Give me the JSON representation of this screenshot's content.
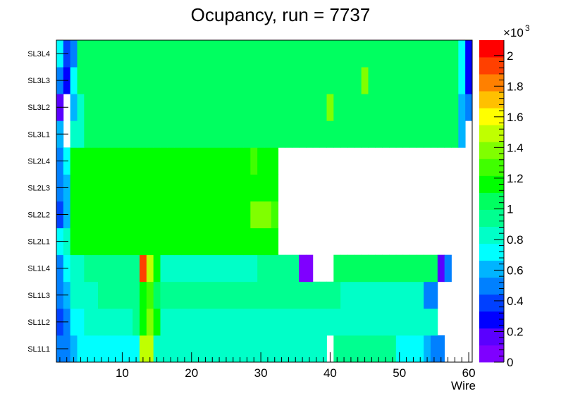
{
  "chart_data": {
    "type": "heatmap",
    "title": "Ocupancy, run = 7737",
    "xlabel": "Wire",
    "xlim": [
      0.5,
      60.5
    ],
    "x_ticks": [
      10,
      20,
      30,
      40,
      50,
      60
    ],
    "y_categories": [
      "SL1L1",
      "SL1L2",
      "SL1L3",
      "SL1L4",
      "SL2L1",
      "SL2L2",
      "SL2L3",
      "SL2L4",
      "SL3L1",
      "SL3L2",
      "SL3L3",
      "SL3L4"
    ],
    "z_range": [
      0,
      2100
    ],
    "z_ticks": [
      "0",
      "0.2",
      "0.4",
      "0.6",
      "0.8",
      "1",
      "1.2",
      "1.4",
      "1.6",
      "1.8",
      "2"
    ],
    "z_exponent_base": "×10",
    "z_exponent_power": "3",
    "palette": [
      "#7f00ff",
      "#5a00ff",
      "#0000ff",
      "#0040ff",
      "#0080ff",
      "#00b4ff",
      "#00ffff",
      "#00ffc8",
      "#00ff90",
      "#00ff60",
      "#00ff00",
      "#40ff00",
      "#80ff00",
      "#c0ff00",
      "#ffff00",
      "#ffc000",
      "#ff8000",
      "#ff4000",
      "#ff0000"
    ],
    "rows": {
      "SL1L1": {
        "ranges": [
          [
            1,
            2,
            550
          ],
          [
            3,
            3,
            650
          ],
          [
            4,
            12,
            700
          ],
          [
            13,
            14,
            1500
          ],
          [
            15,
            21,
            880
          ],
          [
            22,
            22,
            800
          ],
          [
            23,
            39,
            880
          ],
          [
            40,
            40,
            0
          ],
          [
            41,
            49,
            900
          ],
          [
            50,
            53,
            700
          ],
          [
            54,
            54,
            650
          ],
          [
            55,
            56,
            500
          ],
          [
            57,
            60,
            0
          ]
        ]
      },
      "SL1L2": {
        "ranges": [
          [
            1,
            1,
            380
          ],
          [
            2,
            2,
            500
          ],
          [
            3,
            4,
            700
          ],
          [
            5,
            11,
            880
          ],
          [
            12,
            12,
            950
          ],
          [
            13,
            13,
            1200
          ],
          [
            14,
            14,
            1350
          ],
          [
            15,
            15,
            1200
          ],
          [
            16,
            29,
            880
          ],
          [
            30,
            55,
            880
          ],
          [
            56,
            60,
            0
          ]
        ]
      },
      "SL1L3": {
        "ranges": [
          [
            1,
            1,
            500
          ],
          [
            2,
            2,
            600
          ],
          [
            3,
            6,
            880
          ],
          [
            7,
            12,
            950
          ],
          [
            13,
            13,
            1150
          ],
          [
            14,
            14,
            1300
          ],
          [
            15,
            15,
            1100
          ],
          [
            16,
            29,
            900
          ],
          [
            30,
            41,
            950
          ],
          [
            42,
            53,
            880
          ],
          [
            54,
            55,
            500
          ],
          [
            56,
            60,
            0
          ]
        ]
      },
      "SL1L4": {
        "ranges": [
          [
            1,
            1,
            500
          ],
          [
            2,
            2,
            700
          ],
          [
            3,
            4,
            880
          ],
          [
            5,
            12,
            900
          ],
          [
            13,
            13,
            1900
          ],
          [
            14,
            14,
            1500
          ],
          [
            15,
            15,
            1200
          ],
          [
            16,
            29,
            880
          ],
          [
            30,
            35,
            950
          ],
          [
            36,
            37,
            30
          ],
          [
            38,
            40,
            0
          ],
          [
            41,
            55,
            1000
          ],
          [
            56,
            56,
            150
          ],
          [
            57,
            57,
            550
          ],
          [
            58,
            60,
            0
          ]
        ]
      },
      "SL2L1": {
        "ranges": [
          [
            1,
            1,
            700
          ],
          [
            2,
            2,
            800
          ],
          [
            3,
            28,
            1150
          ],
          [
            29,
            32,
            1200
          ],
          [
            33,
            60,
            0
          ]
        ]
      },
      "SL2L2": {
        "ranges": [
          [
            1,
            1,
            350
          ],
          [
            2,
            2,
            600
          ],
          [
            3,
            28,
            1150
          ],
          [
            29,
            31,
            1350
          ],
          [
            32,
            32,
            1300
          ],
          [
            33,
            60,
            0
          ]
        ]
      },
      "SL2L3": {
        "ranges": [
          [
            1,
            1,
            480
          ],
          [
            2,
            2,
            650
          ],
          [
            3,
            28,
            1150
          ],
          [
            29,
            30,
            1200
          ],
          [
            31,
            32,
            1150
          ],
          [
            33,
            60,
            0
          ]
        ]
      },
      "SL2L4": {
        "ranges": [
          [
            1,
            1,
            550
          ],
          [
            2,
            2,
            750
          ],
          [
            3,
            28,
            1150
          ],
          [
            29,
            29,
            1250
          ],
          [
            30,
            32,
            1150
          ],
          [
            33,
            60,
            0
          ]
        ]
      },
      "SL3L1": {
        "ranges": [
          [
            1,
            1,
            600
          ],
          [
            2,
            2,
            0
          ],
          [
            3,
            4,
            850
          ],
          [
            5,
            33,
            1050
          ],
          [
            34,
            58,
            1000
          ],
          [
            59,
            59,
            600
          ],
          [
            60,
            60,
            0
          ]
        ]
      },
      "SL3L2": {
        "ranges": [
          [
            1,
            1,
            180
          ],
          [
            2,
            2,
            0
          ],
          [
            3,
            3,
            600
          ],
          [
            4,
            4,
            880
          ],
          [
            5,
            39,
            1050
          ],
          [
            40,
            40,
            1350
          ],
          [
            41,
            58,
            1000
          ],
          [
            59,
            59,
            650
          ],
          [
            60,
            60,
            450
          ]
        ]
      },
      "SL3L3": {
        "ranges": [
          [
            1,
            1,
            450
          ],
          [
            2,
            2,
            250
          ],
          [
            3,
            3,
            750
          ],
          [
            4,
            44,
            1000
          ],
          [
            45,
            45,
            1400
          ],
          [
            46,
            58,
            1000
          ],
          [
            59,
            59,
            700
          ],
          [
            60,
            60,
            300
          ]
        ]
      },
      "SL3L4": {
        "ranges": [
          [
            1,
            1,
            700
          ],
          [
            2,
            2,
            350
          ],
          [
            3,
            3,
            550
          ],
          [
            4,
            58,
            1000
          ],
          [
            59,
            59,
            700
          ],
          [
            60,
            60,
            300
          ]
        ]
      }
    }
  }
}
